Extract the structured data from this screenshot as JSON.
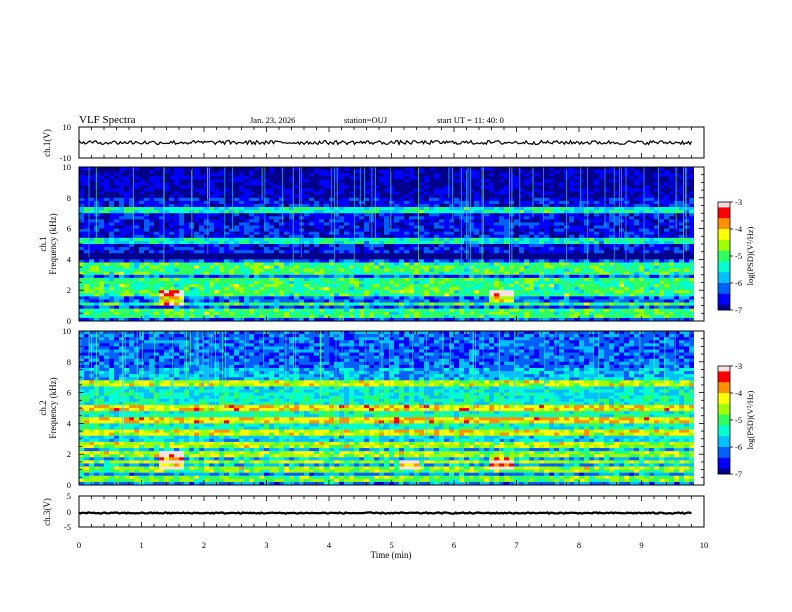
{
  "header": {
    "title": "VLF Spectra",
    "date": "Jan. 23, 2026",
    "station": "station=OUJ",
    "start_ut": "start  UT =   11: 40: 0"
  },
  "colors": {
    "colormap": [
      "#000080",
      "#0000ff",
      "#00a0ff",
      "#00ffff",
      "#00ff80",
      "#80ff00",
      "#ffff00",
      "#ff8000",
      "#ff0000",
      "#ffffff"
    ],
    "waveform": "#000000"
  },
  "chart_data": [
    {
      "type": "line",
      "title": "",
      "ylabel": "ch.1(V)",
      "xlabel": "",
      "xlim": [
        0,
        10
      ],
      "ylim": [
        -10,
        10
      ],
      "y_ticks": [
        "10",
        "-10"
      ],
      "series": [
        {
          "approx_level": 0,
          "approx_amplitude": 1.3,
          "x_end": 9.8
        }
      ]
    },
    {
      "type": "heatmap",
      "title": "",
      "ylabel": "ch.1\nFrequency (kHz)",
      "xlim": [
        0,
        10
      ],
      "ylim": [
        0,
        10
      ],
      "y_ticks": [
        "0",
        "2",
        "4",
        "6",
        "8",
        "10"
      ],
      "colorbar": {
        "label": "log(PSD)(V²/Hz)",
        "ticks": [
          "-3",
          "-4",
          "-5",
          "-6",
          "-7"
        ],
        "range": [
          -7,
          -3
        ]
      },
      "features": {
        "background_level": -6.6,
        "dark_band_khz": [
          4.0,
          4.4
        ],
        "bright_lines_khz": [
          0.3,
          0.6,
          1.1,
          1.8,
          2.2,
          2.6,
          3.2,
          3.6,
          5.2,
          7.2
        ],
        "bursts": [
          {
            "t": [
              1.25,
              1.65
            ],
            "f": [
              1.0,
              2.0
            ]
          },
          {
            "t": [
              6.6,
              6.95
            ],
            "f": [
              1.2,
              2.0
            ]
          }
        ],
        "quiet_end_min": 9.8
      }
    },
    {
      "type": "heatmap",
      "title": "",
      "ylabel": "ch.2\nFrequency (kHz)",
      "xlim": [
        0,
        10
      ],
      "ylim": [
        0,
        10
      ],
      "y_ticks": [
        "0",
        "2",
        "4",
        "6",
        "8",
        "10"
      ],
      "colorbar": {
        "label": "log(PSD)(V²/Hz)",
        "ticks": [
          "-3",
          "-4",
          "-5",
          "-6",
          "-7"
        ],
        "range": [
          -7,
          -3
        ]
      },
      "features": {
        "background_level": -5.8,
        "bright_lines_khz": [
          0.4,
          1.0,
          1.5,
          2.0,
          2.6,
          3.4,
          4.2,
          5.0,
          6.6
        ],
        "bursts": [
          {
            "t": [
              1.25,
              1.65
            ],
            "f": [
              1.0,
              2.2
            ]
          },
          {
            "t": [
              5.1,
              5.45
            ],
            "f": [
              1.0,
              1.6
            ]
          },
          {
            "t": [
              6.6,
              6.95
            ],
            "f": [
              1.0,
              1.8
            ]
          }
        ],
        "quiet_end_min": 9.8
      }
    },
    {
      "type": "line",
      "title": "",
      "ylabel": "ch.3(V)",
      "xlabel": "Time (min)",
      "xlim": [
        0,
        10
      ],
      "ylim": [
        -5,
        5
      ],
      "y_ticks": [
        "5",
        "0",
        "-5"
      ],
      "x_ticks": [
        "0",
        "1",
        "2",
        "3",
        "4",
        "5",
        "6",
        "7",
        "8",
        "9",
        "10"
      ],
      "series": [
        {
          "approx_level": -0.5,
          "approx_amplitude": 0.2,
          "x_end": 9.8
        }
      ]
    }
  ]
}
